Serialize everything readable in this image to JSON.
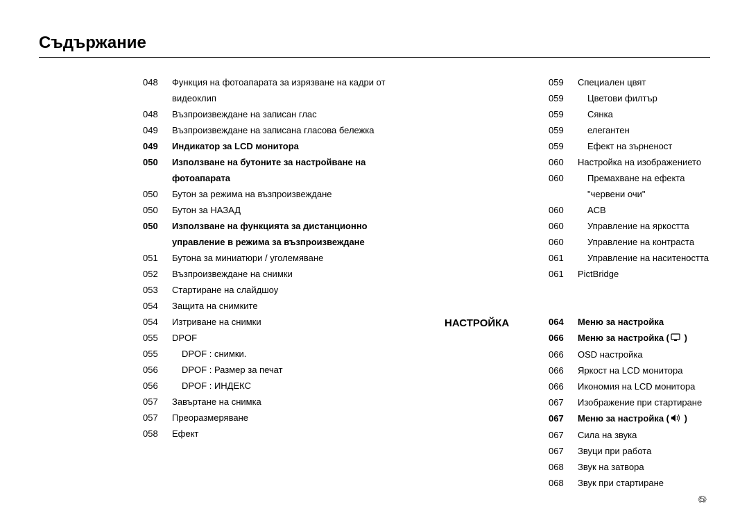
{
  "title": "Съдържание",
  "page_number": "5",
  "section_label": "НАСТРОЙКА",
  "left_col": [
    {
      "num": "048",
      "text": "Функция на фотоапарата за изрязване на кадри от видеоклип",
      "bold": false,
      "indent": 0
    },
    {
      "num": "048",
      "text": "Възпроизвеждане на записан глас",
      "bold": false,
      "indent": 0
    },
    {
      "num": "049",
      "text": "Възпроизвеждане на записана гласова бележка",
      "bold": false,
      "indent": 0
    },
    {
      "num": "049",
      "text": "Индикатор за LCD монитора",
      "bold": true,
      "indent": 0
    },
    {
      "num": "050",
      "text": "Използване на бутоните за настройване на фотоапарата",
      "bold": true,
      "indent": 0
    },
    {
      "num": "050",
      "text": "Бутон за режима на възпроизвеждане",
      "bold": false,
      "indent": 0
    },
    {
      "num": "050",
      "text": "Бутон за НАЗАД",
      "bold": false,
      "indent": 0
    },
    {
      "num": "050",
      "text": "Използване на функцията за дистанционно управление в режима за възпроизвеждане",
      "bold": true,
      "indent": 0
    },
    {
      "num": "051",
      "text": "Бутона за миниатюри  / уголемяване",
      "bold": false,
      "indent": 0
    },
    {
      "num": "052",
      "text": "Възпроизвеждане на снимки",
      "bold": false,
      "indent": 0
    },
    {
      "num": "053",
      "text": "Стартиране на слайдшоу",
      "bold": false,
      "indent": 0
    },
    {
      "num": "054",
      "text": "Защита на снимките",
      "bold": false,
      "indent": 0
    },
    {
      "num": "054",
      "text": "Изтриване на снимки",
      "bold": false,
      "indent": 0
    },
    {
      "num": "055",
      "text": "DPOF",
      "bold": false,
      "indent": 0
    },
    {
      "num": "055",
      "text": "DPOF : снимки.",
      "bold": false,
      "indent": 1
    },
    {
      "num": "056",
      "text": "DPOF : Размер за печат",
      "bold": false,
      "indent": 1
    },
    {
      "num": "056",
      "text": "DPOF : ИНДЕКС",
      "bold": false,
      "indent": 1
    },
    {
      "num": "057",
      "text": "Завъртане на снимка",
      "bold": false,
      "indent": 0
    },
    {
      "num": "057",
      "text": "Преоразмеряване",
      "bold": false,
      "indent": 0
    },
    {
      "num": "058",
      "text": "Ефект",
      "bold": false,
      "indent": 0
    }
  ],
  "right_col": [
    {
      "num": "059",
      "text": "Специален цвят",
      "bold": false,
      "indent": 0
    },
    {
      "num": "059",
      "text": "Цветови филтър",
      "bold": false,
      "indent": 1
    },
    {
      "num": "059",
      "text": "Сянка",
      "bold": false,
      "indent": 1
    },
    {
      "num": "059",
      "text": "елегантен",
      "bold": false,
      "indent": 1
    },
    {
      "num": "059",
      "text": "Ефект на зърненост",
      "bold": false,
      "indent": 1
    },
    {
      "num": "060",
      "text": "Настройка на изображението",
      "bold": false,
      "indent": 0
    },
    {
      "num": "060",
      "text": "Премахване на ефекта \"червени очи\"",
      "bold": false,
      "indent": 1
    },
    {
      "num": "060",
      "text": "ACB",
      "bold": false,
      "indent": 1
    },
    {
      "num": "060",
      "text": "Управление на яркостта",
      "bold": false,
      "indent": 1
    },
    {
      "num": "060",
      "text": "Управление на контраста",
      "bold": false,
      "indent": 1
    },
    {
      "num": "061",
      "text": "Управление на наситеността",
      "bold": false,
      "indent": 1
    },
    {
      "num": "061",
      "text": "PictBridge",
      "bold": false,
      "indent": 0
    },
    {
      "spacer": true
    },
    {
      "spacer": true
    },
    {
      "num": "064",
      "text": "Меню за настройка",
      "bold": true,
      "indent": 0
    },
    {
      "num": "066",
      "text": "Меню за настройка (",
      "bold": true,
      "indent": 0,
      "icon": "display",
      "trail": " )"
    },
    {
      "num": "066",
      "text": "OSD настройка",
      "bold": false,
      "indent": 0
    },
    {
      "num": "066",
      "text": "Яркост на LCD монитора",
      "bold": false,
      "indent": 0
    },
    {
      "num": "066",
      "text": "Икономия на LCD монитора",
      "bold": false,
      "indent": 0
    },
    {
      "num": "067",
      "text": "Изображение при стартиране",
      "bold": false,
      "indent": 0
    },
    {
      "num": "067",
      "text": "Меню за настройка (",
      "bold": true,
      "indent": 0,
      "icon": "sound",
      "trail": " )"
    },
    {
      "num": "067",
      "text": "Сила на звука",
      "bold": false,
      "indent": 0
    },
    {
      "num": "067",
      "text": "Звуци при работа",
      "bold": false,
      "indent": 0
    },
    {
      "num": "068",
      "text": "Звук на затвора",
      "bold": false,
      "indent": 0
    },
    {
      "num": "068",
      "text": "Звук при стартиране",
      "bold": false,
      "indent": 0
    }
  ]
}
